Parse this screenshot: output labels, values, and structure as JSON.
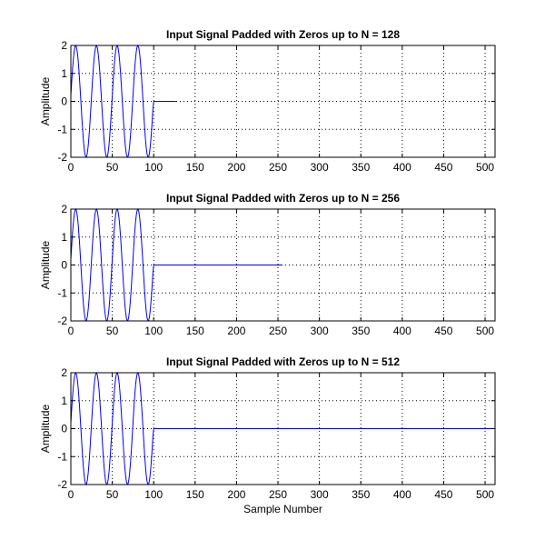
{
  "chart_data": [
    {
      "type": "line",
      "title": "Input Signal Padded with Zeros up to N = 128",
      "xlabel": "",
      "ylabel": "Amplitude",
      "N": 128
    },
    {
      "type": "line",
      "title": "Input Signal Padded with Zeros up to N = 256",
      "xlabel": "",
      "ylabel": "Amplitude",
      "N": 256
    },
    {
      "type": "line",
      "title": "Input Signal Padded with Zeros up to N = 512",
      "xlabel": "Sample Number",
      "ylabel": "Amplitude",
      "N": 512
    }
  ],
  "signal": {
    "amplitude": 2,
    "period_samples": 25,
    "nonzero_length": 100
  },
  "axes": {
    "xlim": [
      0,
      512
    ],
    "ylim": [
      -2,
      2
    ],
    "xticks": [
      0,
      50,
      100,
      150,
      200,
      250,
      300,
      350,
      400,
      450,
      500
    ],
    "yticks": [
      -2,
      -1,
      0,
      1,
      2
    ],
    "grid": true
  },
  "colors": {
    "line": "#0000ff",
    "grid": "#000000"
  }
}
